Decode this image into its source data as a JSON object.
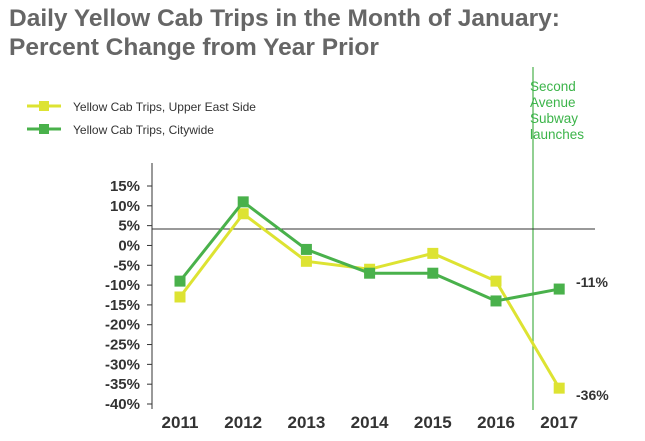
{
  "chart_data": {
    "type": "line",
    "title": "Daily Yellow Cab Trips in the Month of January:",
    "subtitle": "Percent Change from Year Prior",
    "x": [
      "2011",
      "2012",
      "2013",
      "2014",
      "2015",
      "2016",
      "2017"
    ],
    "ylim": [
      -40,
      15
    ],
    "yticks": [
      "15%",
      "10%",
      "5%",
      "0%",
      "-5%",
      "-10%",
      "-15%",
      "-20%",
      "-25%",
      "-30%",
      "-35%",
      "-40%"
    ],
    "legend_position": "top-left",
    "grid": false,
    "series": [
      {
        "name": "Yellow Cab Trips, Upper East Side",
        "color": "#dde332",
        "values": [
          -13,
          8,
          -4,
          -6,
          -2,
          -9,
          -36
        ]
      },
      {
        "name": "Yellow Cab Trips, Citywide",
        "color": "#49b14b",
        "values": [
          -9,
          11,
          -1,
          -7,
          -7,
          -14,
          -11
        ]
      }
    ],
    "annotation": {
      "lines": [
        "Second",
        "Avenue",
        "Subway",
        "launches"
      ],
      "color": "#3cb44a"
    },
    "end_labels": [
      "-11%",
      "-36%"
    ]
  }
}
